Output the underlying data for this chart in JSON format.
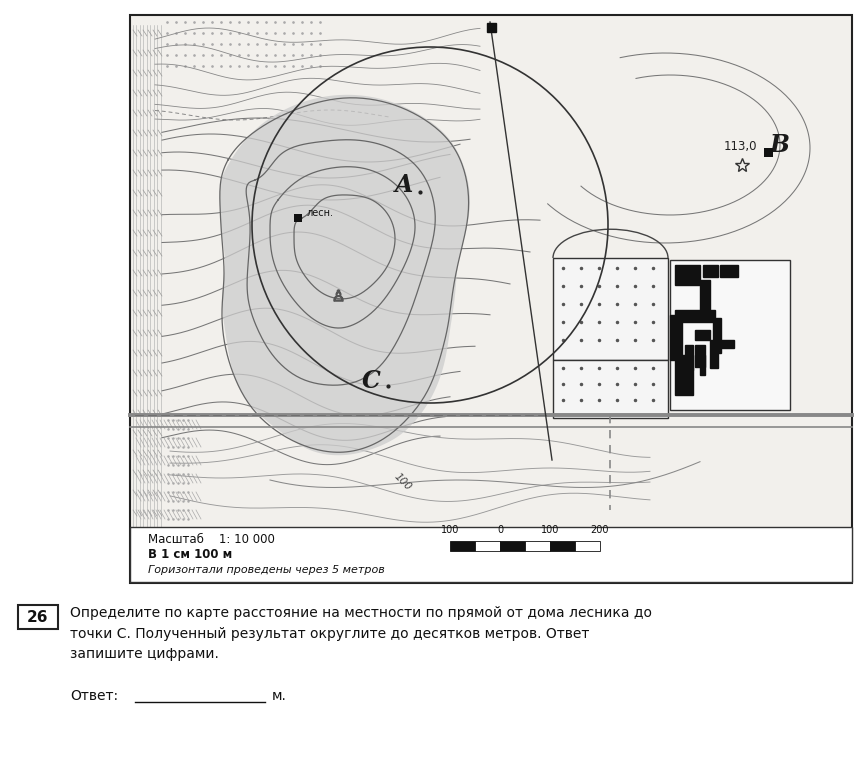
{
  "bg_color": "#ffffff",
  "map_bg": "#f8f8f6",
  "title_number": "26",
  "question_text_line1": "Определите по карте расстояние на местности по прямой от дома лесника до",
  "question_text_line2": "точки C. Полученный результат округлите до десятков метров. Ответ",
  "question_text_line3": "запишите цифрами.",
  "answer_label": "Ответ:",
  "answer_unit": "м.",
  "scale_text1": "Масштаб    1: 10 000",
  "scale_text2": "В 1 см 100 м",
  "scale_text3": "Горизонтали проведены через 5 метров",
  "label_A": "A",
  "label_B": "B",
  "label_C": "C",
  "elev_113": "113,0",
  "label_lesnik": "лесн.",
  "label_100": "100"
}
